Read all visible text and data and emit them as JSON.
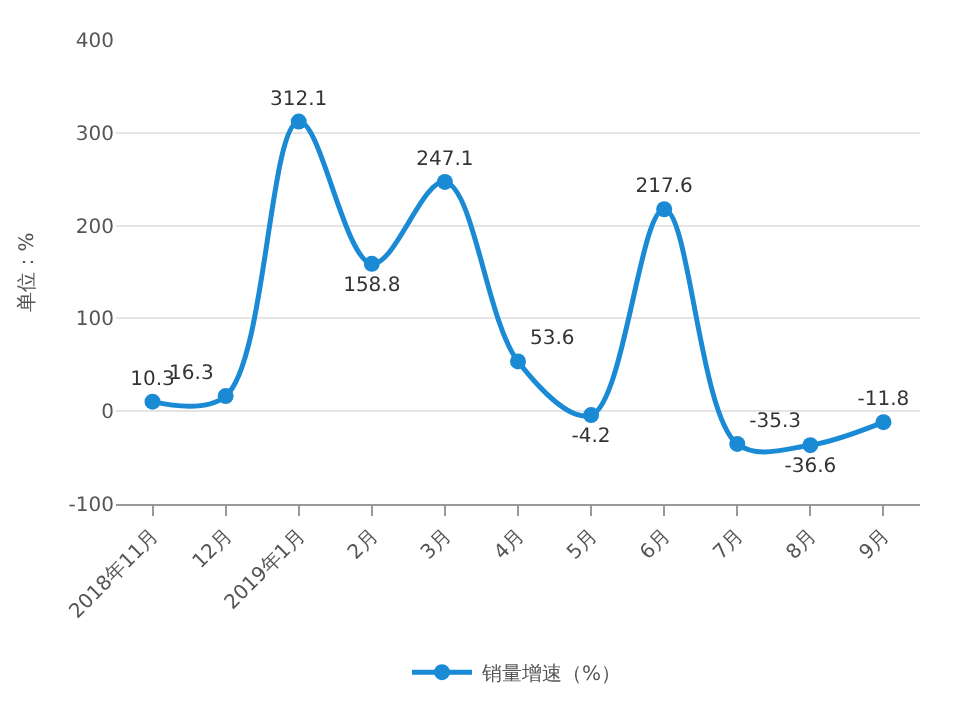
{
  "chart_data": {
    "type": "line",
    "ylabel": "单位：%",
    "categories": [
      "2018年11月",
      "12月",
      "2019年1月",
      "2月",
      "3月",
      "4月",
      "5月",
      "6月",
      "7月",
      "8月",
      "9月"
    ],
    "series": [
      {
        "name": "销量增速（%）",
        "color": "#1a8ad4",
        "values": [
          10.3,
          16.3,
          312.1,
          158.8,
          247.1,
          53.6,
          -4.2,
          217.6,
          -35.3,
          -36.6,
          -11.8
        ]
      }
    ],
    "ylim": [
      -100,
      400
    ],
    "yticks": [
      -100,
      0,
      100,
      200,
      300,
      400
    ],
    "grid": "y",
    "legend": "bottom",
    "marker": "circle",
    "line_style": "solid",
    "data_labels": true
  }
}
